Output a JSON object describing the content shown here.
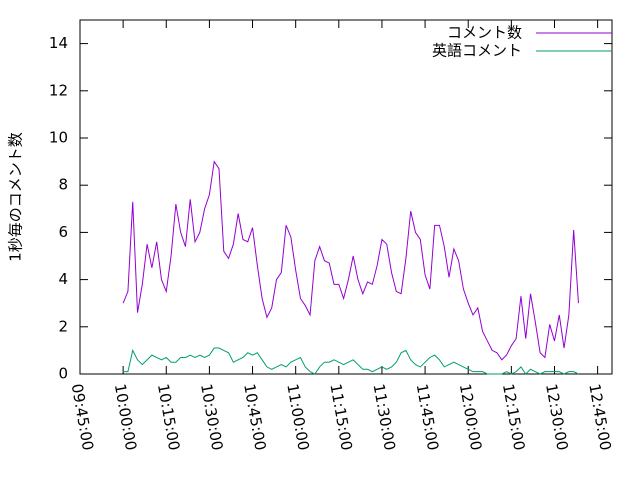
{
  "chart_data": {
    "type": "line",
    "y_label": "1秒毎のコメント数",
    "x": [
      "10:00:00",
      "10:01:40",
      "10:03:20",
      "10:05:00",
      "10:06:40",
      "10:08:20",
      "10:10:00",
      "10:11:40",
      "10:13:20",
      "10:15:00",
      "10:16:40",
      "10:18:20",
      "10:20:00",
      "10:21:40",
      "10:23:20",
      "10:25:00",
      "10:26:40",
      "10:28:20",
      "10:30:00",
      "10:31:40",
      "10:33:20",
      "10:35:00",
      "10:36:40",
      "10:38:20",
      "10:40:00",
      "10:41:40",
      "10:43:20",
      "10:45:00",
      "10:46:40",
      "10:48:20",
      "10:50:00",
      "10:51:40",
      "10:53:20",
      "10:55:00",
      "10:56:40",
      "10:58:20",
      "11:00:00",
      "11:01:40",
      "11:03:20",
      "11:05:00",
      "11:06:40",
      "11:08:20",
      "11:10:00",
      "11:11:40",
      "11:13:20",
      "11:15:00",
      "11:16:40",
      "11:18:20",
      "11:20:00",
      "11:21:40",
      "11:23:20",
      "11:25:00",
      "11:26:40",
      "11:28:20",
      "11:30:00",
      "11:31:40",
      "11:33:20",
      "11:35:00",
      "11:36:40",
      "11:38:20",
      "11:40:00",
      "11:41:40",
      "11:43:20",
      "11:45:00",
      "11:46:40",
      "11:48:20",
      "11:50:00",
      "11:51:40",
      "11:53:20",
      "11:55:00",
      "11:56:40",
      "11:58:20",
      "12:00:00",
      "12:01:40",
      "12:03:20",
      "12:05:00",
      "12:06:40",
      "12:08:20",
      "12:10:00",
      "12:11:40",
      "12:13:20",
      "12:15:00",
      "12:16:40",
      "12:18:20",
      "12:20:00",
      "12:21:40",
      "12:23:20",
      "12:25:00",
      "12:26:40",
      "12:28:20",
      "12:30:00",
      "12:31:40",
      "12:33:20",
      "12:35:00",
      "12:36:40",
      "12:38:20"
    ],
    "series": [
      {
        "name": "コメント数",
        "color": "#9400d3",
        "values": [
          3.0,
          3.5,
          7.3,
          2.6,
          3.8,
          5.5,
          4.5,
          5.6,
          4.0,
          3.5,
          5.0,
          7.2,
          6.0,
          5.4,
          7.4,
          5.6,
          6.0,
          7.0,
          7.6,
          9.0,
          8.7,
          5.2,
          4.9,
          5.5,
          6.8,
          5.7,
          5.6,
          6.2,
          4.6,
          3.2,
          2.4,
          2.8,
          4.0,
          4.3,
          6.3,
          5.8,
          4.4,
          3.2,
          2.9,
          2.5,
          4.8,
          5.4,
          4.8,
          4.7,
          3.8,
          3.8,
          3.2,
          4.0,
          5.0,
          4.0,
          3.4,
          3.9,
          3.8,
          4.6,
          5.7,
          5.5,
          4.3,
          3.5,
          3.4,
          4.9,
          6.9,
          6.0,
          5.7,
          4.2,
          3.6,
          6.3,
          6.3,
          5.4,
          4.1,
          5.3,
          4.8,
          3.6,
          3.0,
          2.5,
          2.8,
          1.8,
          1.4,
          1.0,
          0.9,
          0.6,
          0.8,
          1.2,
          1.5,
          3.3,
          1.5,
          3.4,
          2.2,
          0.9,
          0.7,
          2.1,
          1.4,
          2.5,
          1.1,
          2.5,
          6.1,
          3.0
        ]
      },
      {
        "name": "英語コメント",
        "color": "#009e73",
        "values": [
          0.1,
          0.1,
          1.0,
          0.6,
          0.4,
          0.6,
          0.8,
          0.7,
          0.6,
          0.7,
          0.5,
          0.5,
          0.7,
          0.7,
          0.8,
          0.7,
          0.8,
          0.7,
          0.8,
          1.1,
          1.1,
          1.0,
          0.9,
          0.5,
          0.6,
          0.7,
          0.9,
          0.8,
          0.9,
          0.6,
          0.3,
          0.2,
          0.3,
          0.4,
          0.3,
          0.5,
          0.6,
          0.7,
          0.3,
          0.1,
          0.0,
          0.3,
          0.5,
          0.5,
          0.6,
          0.5,
          0.4,
          0.5,
          0.6,
          0.4,
          0.2,
          0.2,
          0.1,
          0.2,
          0.3,
          0.2,
          0.3,
          0.5,
          0.9,
          1.0,
          0.6,
          0.4,
          0.3,
          0.5,
          0.7,
          0.8,
          0.6,
          0.3,
          0.4,
          0.5,
          0.4,
          0.3,
          0.2,
          0.1,
          0.1,
          0.1,
          0.0,
          0.0,
          0.0,
          0.0,
          0.1,
          0.0,
          0.1,
          0.3,
          0.0,
          0.2,
          0.1,
          0.0,
          0.1,
          0.1,
          0.1,
          0.1,
          0.0,
          0.1,
          0.1,
          0.0
        ]
      }
    ],
    "xlim": [
      "09:45:00",
      "12:50:00"
    ],
    "xticks": [
      "09:45:00",
      "10:00:00",
      "10:15:00",
      "10:30:00",
      "10:45:00",
      "11:00:00",
      "11:15:00",
      "11:30:00",
      "11:45:00",
      "12:00:00",
      "12:15:00",
      "12:30:00",
      "12:45:00"
    ],
    "ylim": [
      0,
      15
    ],
    "yticks": [
      0,
      2,
      4,
      6,
      8,
      10,
      12,
      14
    ],
    "legend": "top-right"
  }
}
